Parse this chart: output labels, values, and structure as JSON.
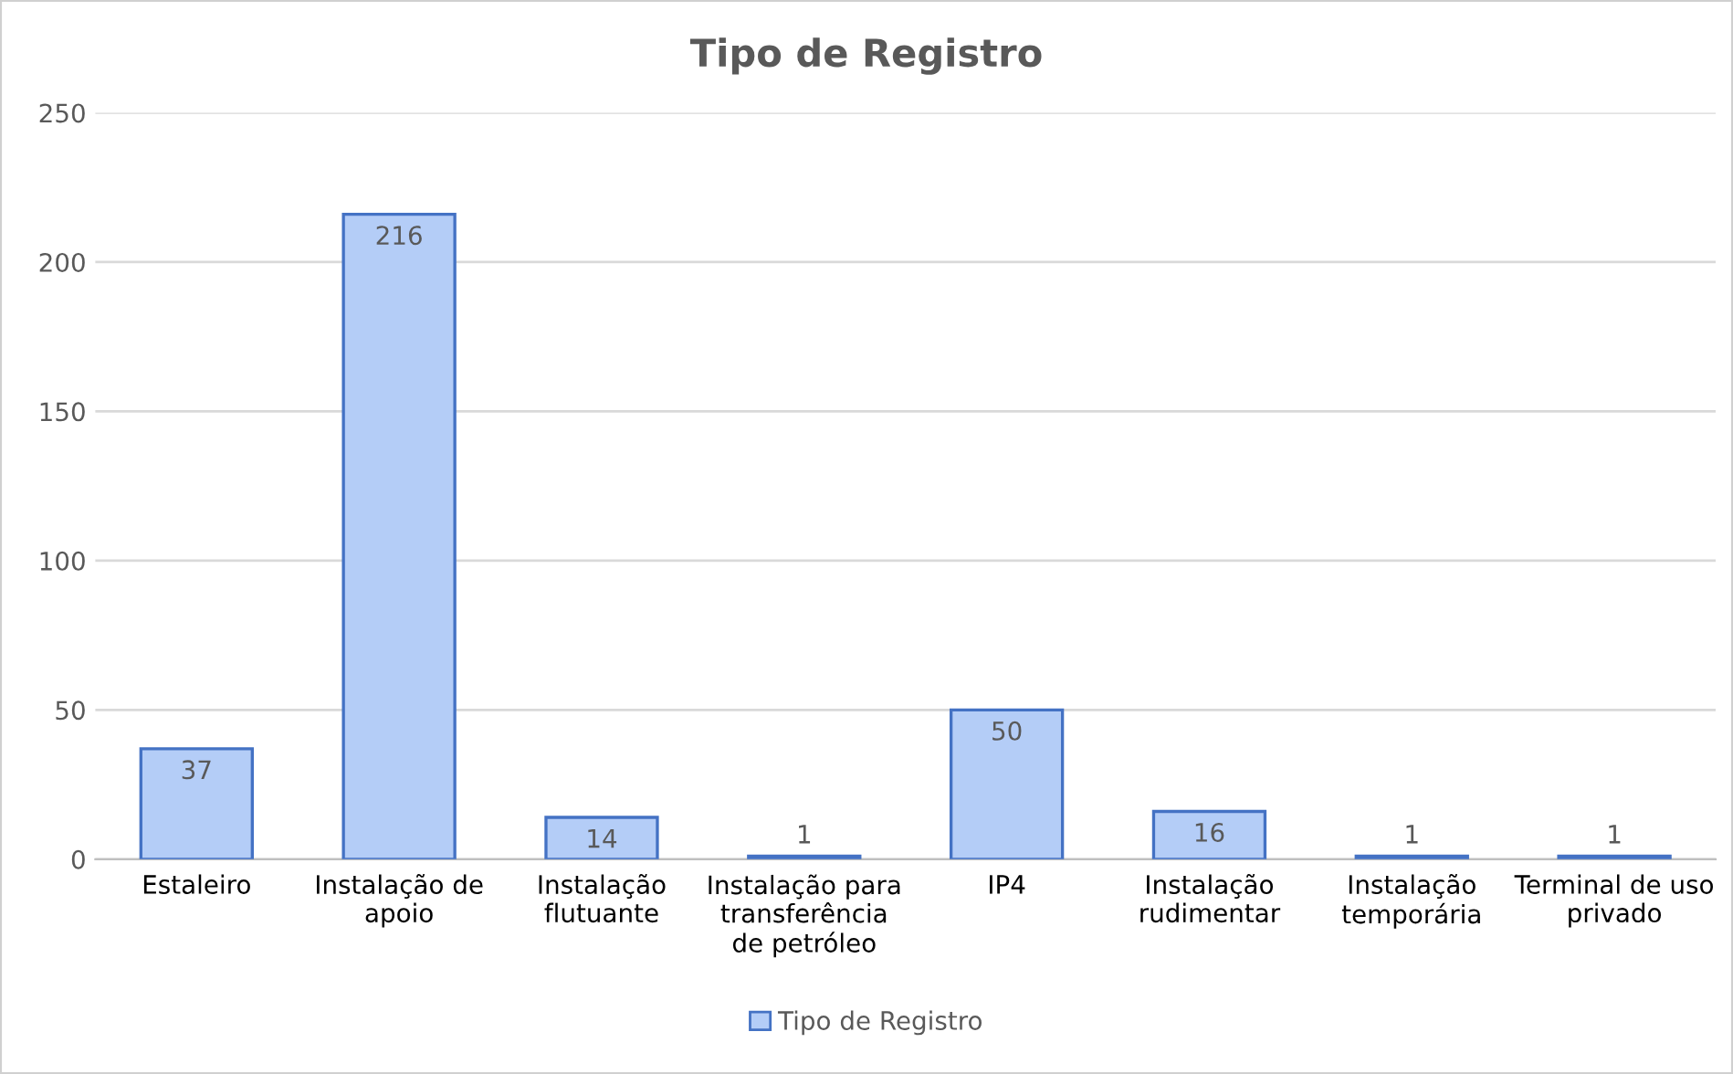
{
  "chart_data": {
    "type": "bar",
    "title": "Tipo de Registro",
    "categories": [
      "Estaleiro",
      "Instalação de apoio",
      "Instalação flutuante",
      "Instalação para transferência de petróleo",
      "IP4",
      "Instalação rudimentar",
      "Instalação temporária",
      "Terminal de uso privado"
    ],
    "series": [
      {
        "name": "Tipo de Registro",
        "color": "#b4cdf7",
        "values": [
          37,
          216,
          14,
          1,
          50,
          16,
          1,
          1
        ]
      }
    ],
    "ylim": [
      0,
      250
    ],
    "yticks": [
      0,
      50,
      100,
      150,
      200,
      250
    ],
    "grid": "y",
    "legend": "bottom",
    "data_labels": true
  }
}
